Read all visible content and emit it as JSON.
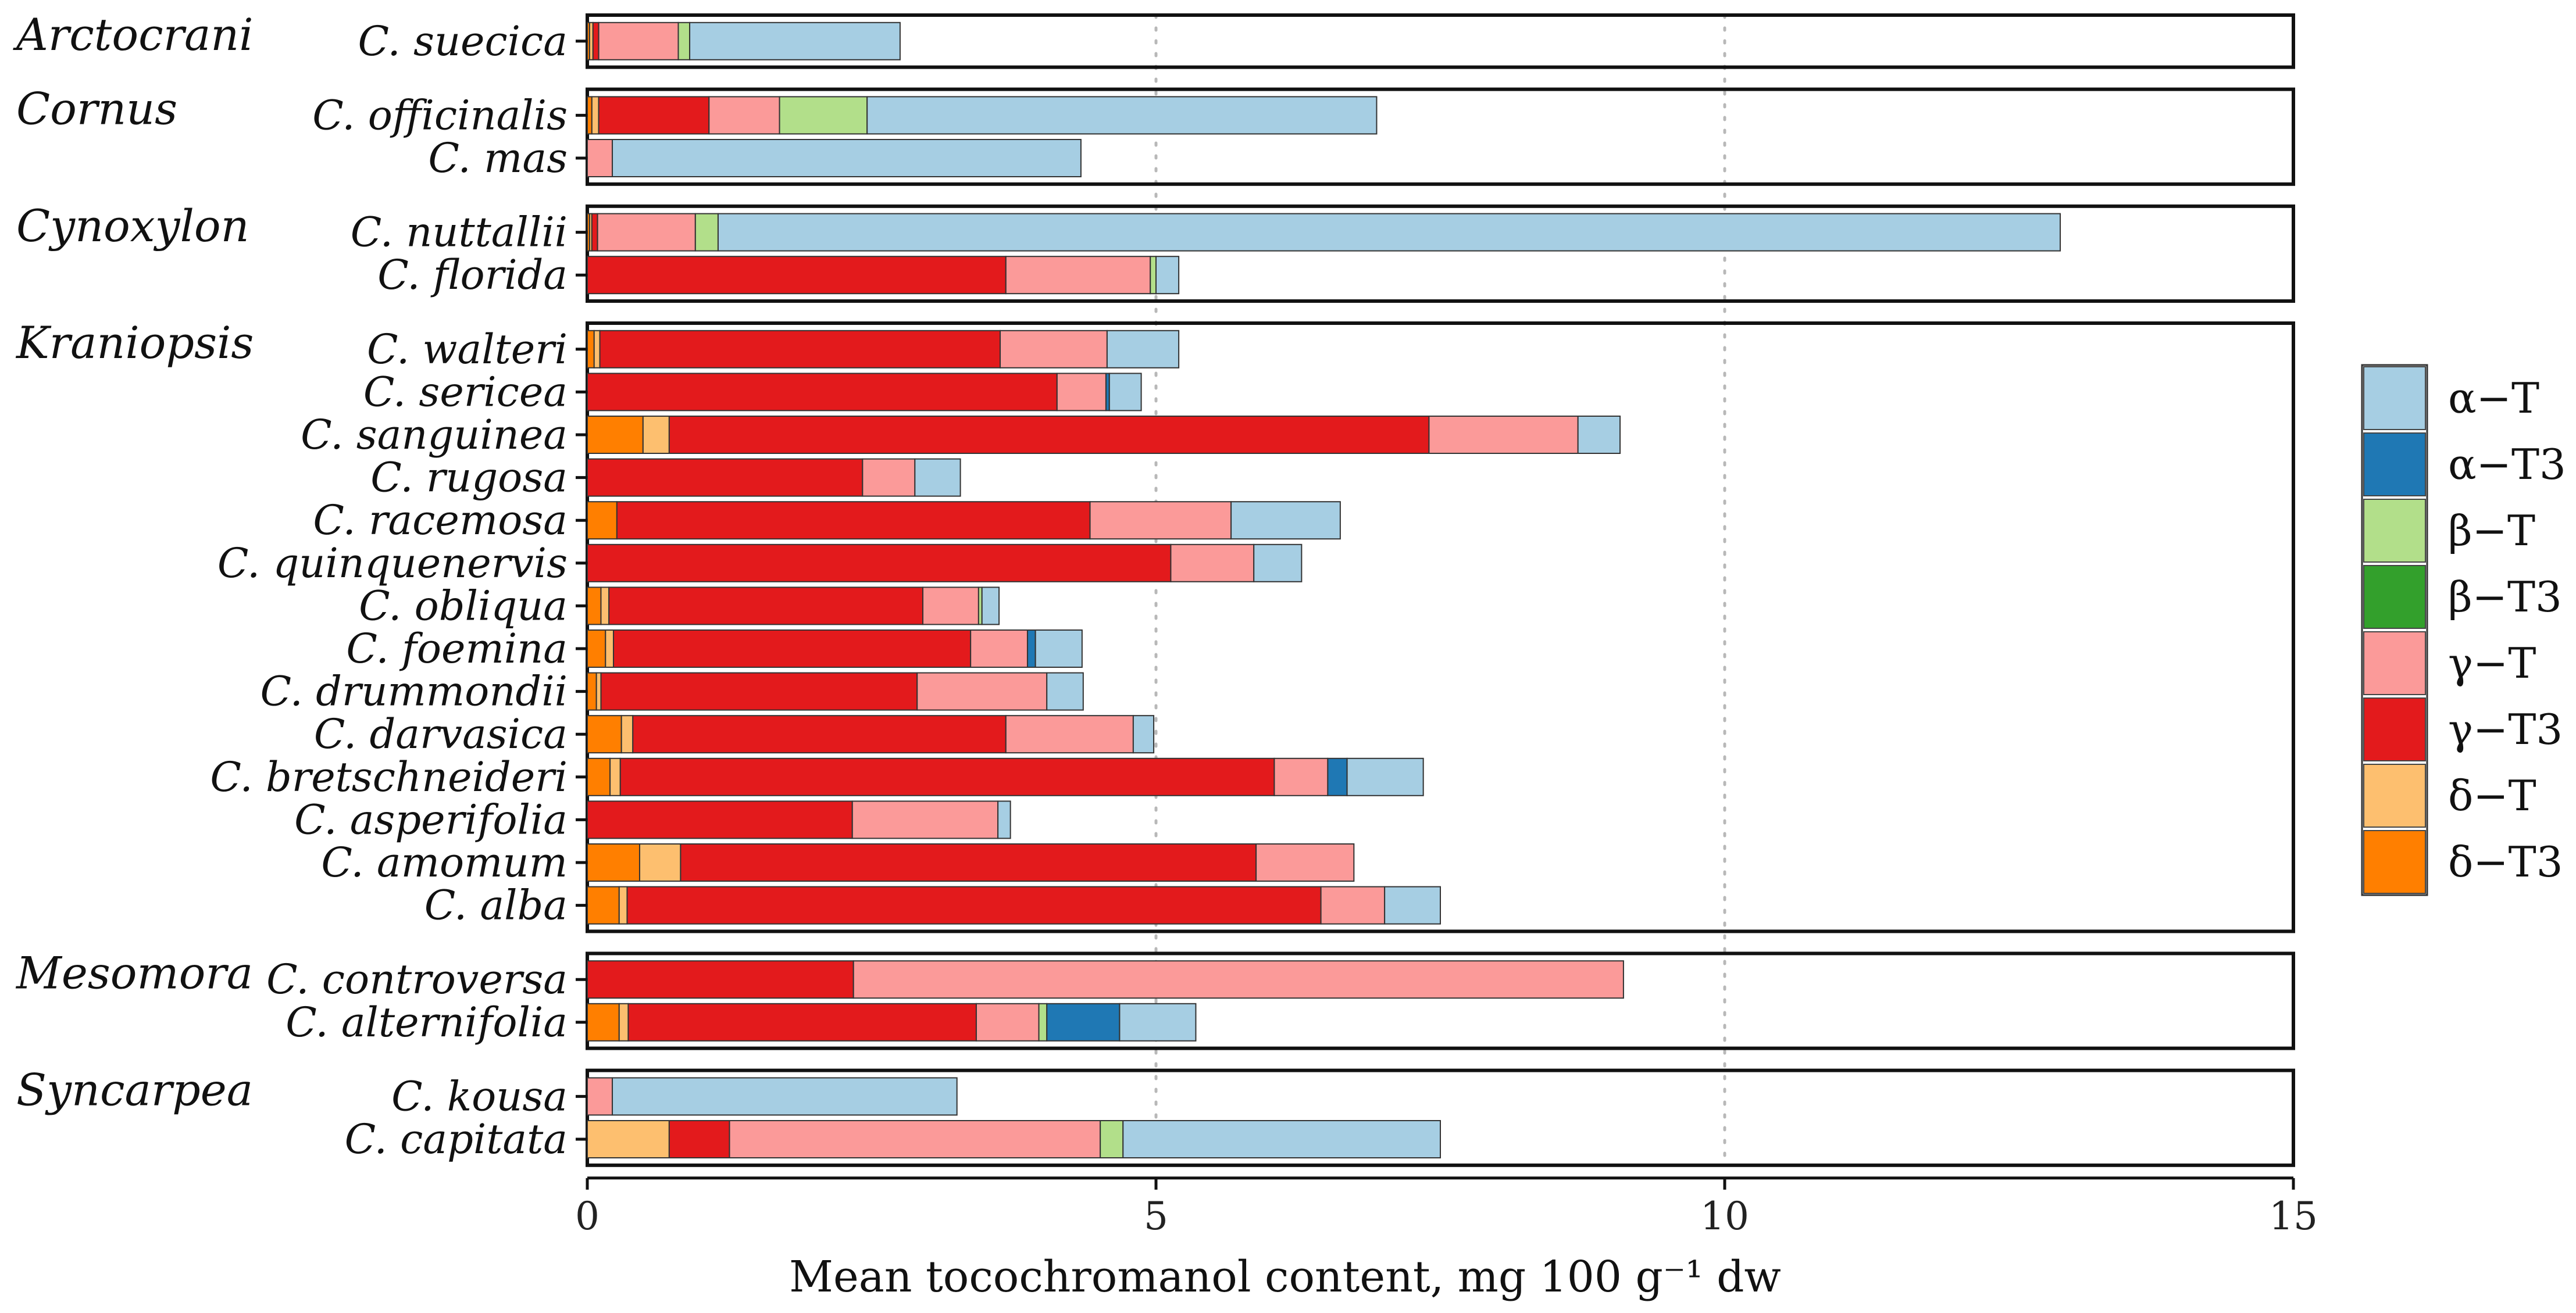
{
  "chart_data": {
    "type": "bar",
    "orientation": "horizontal",
    "stacked": true,
    "title": "",
    "xlabel": "Mean tocochromanol content, mg 100 g⁻¹ dw",
    "xlim": [
      0,
      15
    ],
    "xticks": [
      0,
      5,
      10,
      15
    ],
    "grid": "vertical dotted at 5 and 10",
    "legend_position": "right",
    "components": [
      {
        "name": "α−T",
        "color": "#a6cee3"
      },
      {
        "name": "α−T3",
        "color": "#1f78b4"
      },
      {
        "name": "β−T",
        "color": "#b2df8a"
      },
      {
        "name": "β−T3",
        "color": "#33a02c"
      },
      {
        "name": "γ−T",
        "color": "#fb9a99"
      },
      {
        "name": "γ−T3",
        "color": "#e31a1c"
      },
      {
        "name": "δ−T",
        "color": "#fdbf6f"
      },
      {
        "name": "δ−T3",
        "color": "#ff7f00"
      }
    ],
    "stack_order_from_left": [
      "δ−T3",
      "δ−T",
      "γ−T3",
      "γ−T",
      "β−T3",
      "β−T",
      "α−T3",
      "α−T"
    ],
    "groups": [
      {
        "name": "Arctocrani",
        "species": [
          {
            "name": "C. suecica",
            "values": {
              "δ−T3": 0.02,
              "δ−T": 0.03,
              "γ−T3": 0.05,
              "γ−T": 0.7,
              "β−T": 0.1,
              "α−T": 1.85
            }
          }
        ]
      },
      {
        "name": "Cornus",
        "species": [
          {
            "name": "C. officinalis",
            "values": {
              "δ−T": 0.06,
              "δ−T3": 0.04,
              "γ−T3": 0.97,
              "γ−T": 0.62,
              "β−T": 0.77,
              "α−T": 4.48
            }
          },
          {
            "name": "C. mas",
            "values": {
              "γ−T": 0.22,
              "α−T": 4.12
            }
          }
        ]
      },
      {
        "name": "Cynoxylon",
        "species": [
          {
            "name": "C. nuttallii",
            "values": {
              "δ−T3": 0.02,
              "δ−T": 0.02,
              "γ−T3": 0.05,
              "γ−T": 0.86,
              "β−T": 0.2,
              "α−T": 11.8
            }
          },
          {
            "name": "C. florida",
            "values": {
              "γ−T3": 3.68,
              "γ−T": 1.27,
              "β−T": 0.05,
              "α−T": 0.2
            }
          }
        ]
      },
      {
        "name": "Kraniopsis",
        "species": [
          {
            "name": "C. walteri",
            "values": {
              "δ−T3": 0.06,
              "δ−T": 0.05,
              "γ−T3": 3.52,
              "γ−T": 0.94,
              "α−T": 0.63
            }
          },
          {
            "name": "C. sericea",
            "values": {
              "γ−T3": 4.13,
              "γ−T": 0.43,
              "α−T3": 0.03,
              "α−T": 0.28
            }
          },
          {
            "name": "C. sanguinea",
            "values": {
              "δ−T3": 0.49,
              "δ−T": 0.23,
              "γ−T3": 6.68,
              "γ−T": 1.31,
              "α−T": 0.37
            }
          },
          {
            "name": "C. rugosa",
            "values": {
              "γ−T3": 2.42,
              "γ−T": 0.46,
              "α−T": 0.4
            }
          },
          {
            "name": "C. racemosa",
            "values": {
              "δ−T3": 0.26,
              "γ−T3": 4.16,
              "γ−T": 1.24,
              "α−T": 0.96
            }
          },
          {
            "name": "C. quinquenervis",
            "values": {
              "γ−T3": 5.13,
              "γ−T": 0.73,
              "α−T": 0.42
            }
          },
          {
            "name": "C. obliqua",
            "values": {
              "δ−T3": 0.12,
              "δ−T": 0.07,
              "γ−T3": 2.76,
              "γ−T": 0.49,
              "β−T": 0.03,
              "α−T": 0.15
            }
          },
          {
            "name": "C. foemina",
            "values": {
              "δ−T3": 0.16,
              "δ−T": 0.07,
              "γ−T3": 3.14,
              "γ−T": 0.5,
              "α−T3": 0.07,
              "α−T": 0.41
            }
          },
          {
            "name": "C. drummondii",
            "values": {
              "δ−T3": 0.08,
              "δ−T": 0.04,
              "γ−T3": 2.78,
              "γ−T": 1.14,
              "α−T": 0.32
            }
          },
          {
            "name": "C. darvasica",
            "values": {
              "δ−T3": 0.3,
              "δ−T": 0.1,
              "γ−T3": 3.28,
              "γ−T": 1.12,
              "α−T": 0.18
            }
          },
          {
            "name": "C. bretschneideri",
            "values": {
              "δ−T3": 0.2,
              "δ−T": 0.09,
              "γ−T3": 5.75,
              "γ−T": 0.47,
              "α−T3": 0.17,
              "α−T": 0.67
            }
          },
          {
            "name": "C. asperifolia",
            "values": {
              "γ−T3": 2.33,
              "γ−T": 1.28,
              "α−T": 0.11
            }
          },
          {
            "name": "C. amomum",
            "values": {
              "δ−T3": 0.46,
              "δ−T": 0.36,
              "γ−T3": 5.06,
              "γ−T": 0.86
            }
          },
          {
            "name": "C. alba",
            "values": {
              "δ−T3": 0.28,
              "δ−T": 0.07,
              "γ−T3": 6.1,
              "γ−T": 0.56,
              "α−T": 0.49
            }
          }
        ]
      },
      {
        "name": "Mesomora",
        "species": [
          {
            "name": "C. controversa",
            "values": {
              "γ−T3": 2.34,
              "γ−T": 6.77
            }
          },
          {
            "name": "C. alternifolia",
            "values": {
              "δ−T3": 0.28,
              "δ−T": 0.08,
              "γ−T3": 3.06,
              "γ−T": 0.55,
              "β−T": 0.07,
              "α−T3": 0.64,
              "α−T": 0.67
            }
          }
        ]
      },
      {
        "name": "Syncarpea",
        "species": [
          {
            "name": "C. kousa",
            "values": {
              "γ−T": 0.22,
              "α−T": 3.03
            }
          },
          {
            "name": "C. capitata",
            "values": {
              "δ−T": 0.72,
              "γ−T3": 0.53,
              "γ−T": 3.26,
              "β−T": 0.2,
              "α−T": 2.79
            }
          }
        ]
      }
    ]
  }
}
